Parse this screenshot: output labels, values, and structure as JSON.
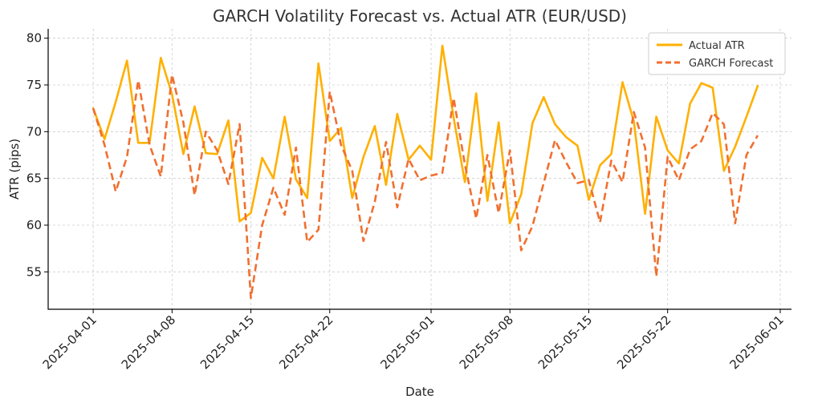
{
  "chart_data": {
    "type": "line",
    "title": "GARCH Volatility Forecast vs. Actual ATR (EUR/USD)",
    "xlabel": "Date",
    "ylabel": "ATR (pips)",
    "x_tick_labels": [
      "2025-04-01",
      "2025-04-08",
      "2025-04-15",
      "2025-04-22",
      "2025-05-01",
      "2025-05-08",
      "2025-05-15",
      "2025-05-22",
      "2025-06-01"
    ],
    "y_ticks": [
      55,
      60,
      65,
      70,
      75,
      80
    ],
    "ylim": [
      51,
      81
    ],
    "xlim": [
      "2025-03-28",
      "2025-06-02"
    ],
    "grid": true,
    "legend_position": "top-right",
    "x": [
      "2025-04-01",
      "2025-04-02",
      "2025-04-03",
      "2025-04-04",
      "2025-04-05",
      "2025-04-06",
      "2025-04-07",
      "2025-04-08",
      "2025-04-09",
      "2025-04-10",
      "2025-04-11",
      "2025-04-12",
      "2025-04-13",
      "2025-04-14",
      "2025-04-15",
      "2025-04-16",
      "2025-04-17",
      "2025-04-18",
      "2025-04-19",
      "2025-04-20",
      "2025-04-21",
      "2025-04-22",
      "2025-04-23",
      "2025-04-24",
      "2025-04-25",
      "2025-04-26",
      "2025-04-27",
      "2025-04-28",
      "2025-04-29",
      "2025-04-30",
      "2025-05-01",
      "2025-05-02",
      "2025-05-03",
      "2025-05-04",
      "2025-05-05",
      "2025-05-06",
      "2025-05-07",
      "2025-05-08",
      "2025-05-09",
      "2025-05-10",
      "2025-05-11",
      "2025-05-12",
      "2025-05-13",
      "2025-05-14",
      "2025-05-15",
      "2025-05-16",
      "2025-05-17",
      "2025-05-18",
      "2025-05-19",
      "2025-05-20",
      "2025-05-21",
      "2025-05-22",
      "2025-05-23",
      "2025-05-24",
      "2025-05-25",
      "2025-05-26",
      "2025-05-27",
      "2025-05-28",
      "2025-05-29",
      "2025-05-30"
    ],
    "series": [
      {
        "name": "Actual ATR",
        "color": "#FFB000",
        "style": "solid",
        "values": [
          72.5,
          69.2,
          73.2,
          77.6,
          68.8,
          68.8,
          77.9,
          74.0,
          67.6,
          72.7,
          67.7,
          67.6,
          71.2,
          60.4,
          61.3,
          67.2,
          65.0,
          71.6,
          64.9,
          62.9,
          77.3,
          69.0,
          70.4,
          62.9,
          67.3,
          70.6,
          64.3,
          71.9,
          67.0,
          68.5,
          67.0,
          79.2,
          71.5,
          64.6,
          74.1,
          62.6,
          71.0,
          60.2,
          63.3,
          70.9,
          73.7,
          70.8,
          69.4,
          68.5,
          62.7,
          66.4,
          67.6,
          75.3,
          71.1,
          61.2,
          71.6,
          68.0,
          66.6,
          73.0,
          75.2,
          74.7,
          65.8,
          68.4,
          71.6,
          74.9
        ]
      },
      {
        "name": "GARCH Forecast",
        "color": "#F07030",
        "style": "dashed",
        "values": [
          72.5,
          68.6,
          63.6,
          67.3,
          75.5,
          68.6,
          65.2,
          76.1,
          71.0,
          63.2,
          70.0,
          68.0,
          64.4,
          70.8,
          52.2,
          60.0,
          64.0,
          61.1,
          68.3,
          58.2,
          59.5,
          74.3,
          68.6,
          65.8,
          58.3,
          62.5,
          68.9,
          61.9,
          67.1,
          64.8,
          65.3,
          65.6,
          73.6,
          66.5,
          60.7,
          67.5,
          61.3,
          68.0,
          57.3,
          59.9,
          64.5,
          69.1,
          66.7,
          64.5,
          64.8,
          60.3,
          66.9,
          64.6,
          72.1,
          68.3,
          54.5,
          67.3,
          64.8,
          68.1,
          69.0,
          72.0,
          70.8,
          60.2,
          67.5,
          69.6
        ]
      }
    ]
  }
}
